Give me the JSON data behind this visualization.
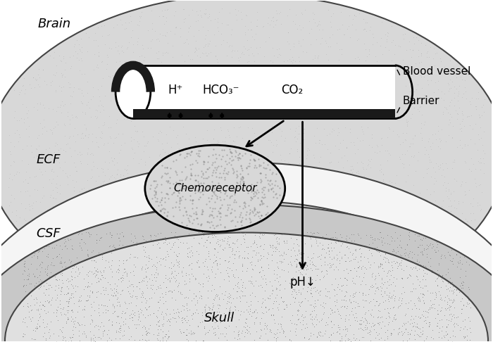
{
  "labels": {
    "brain": "Brain",
    "ecf": "ECF",
    "csf": "CSF",
    "skull": "Skull",
    "blood_vessel": "Blood vessel",
    "barrier": "Barrier",
    "chemoreceptor": "Chemoreceptor",
    "h_plus": "H⁺",
    "hco3": "HCO₃⁻",
    "co2": "CO₂",
    "ph": "pH↓"
  },
  "figsize": [
    7.0,
    4.86
  ],
  "dpi": 100,
  "brain_dot_color": "#888888",
  "skull_dot_color": "#666666",
  "vessel_lumen_color": "#ffffff",
  "barrier_color": "#1a1a1a",
  "chemo_fill_color": "#d8d8d8",
  "bg_gray": "#d8d8d8",
  "csf_white": "#f5f5f5",
  "skull_gray": "#c8c8c8"
}
